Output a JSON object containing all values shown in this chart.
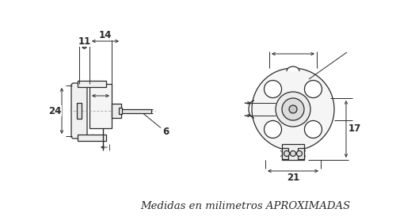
{
  "bg_color": "#ffffff",
  "line_color": "#2a2a2a",
  "dim_color": "#2a2a2a",
  "footer_text": "Medidas en milimetros APROXIMADAS",
  "footer_fontsize": 9.5,
  "dim_fontsize": 8.5,
  "dim_11": "11",
  "dim_14": "14",
  "dim_24": "24",
  "dim_6": "6",
  "dim_17": "17",
  "dim_21": "21",
  "lw_main": 0.9,
  "lw_dim": 0.7
}
